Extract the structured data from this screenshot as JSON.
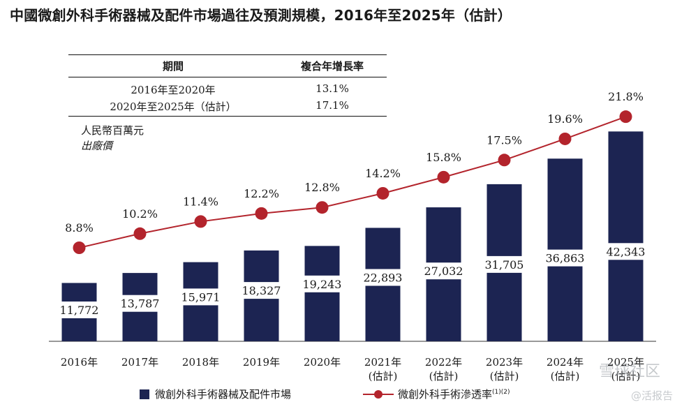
{
  "title": "中國微創外科手術器械及配件市場過往及預測規模，2016年至2025年（估計）",
  "cagr_table": {
    "headers": [
      "期間",
      "複合年增長率"
    ],
    "rows": [
      {
        "period": "2016年至2020年",
        "rate": "13.1%"
      },
      {
        "period": "2020年至2025年（估計）",
        "rate": "17.1%"
      }
    ]
  },
  "unit_label": "人民幣百萬元",
  "unit_sublabel": "出廠價",
  "legend": {
    "bar_label": "微創外科手術器械及配件市場",
    "line_label": "微創外科手術滲透率",
    "line_note": "(1)(2)"
  },
  "watermarks": [
    "雪球社区",
    "@活报告"
  ],
  "chart_data": {
    "type": "bar",
    "categories": [
      "2016年",
      "2017年",
      "2018年",
      "2019年",
      "2020年",
      "2021年\n(估計)",
      "2022年\n(估計)",
      "2023年\n(估計)",
      "2024年\n(估計)",
      "2025年\n(估計)"
    ],
    "series": [
      {
        "name": "微創外科手術器械及配件市場",
        "type": "bar",
        "values": [
          11772,
          13787,
          15971,
          18327,
          19243,
          22893,
          27032,
          31705,
          36863,
          42343
        ],
        "labels": [
          "11,772",
          "13,787",
          "15,971",
          "18,327",
          "19,243",
          "22,893",
          "27,032",
          "31,705",
          "36,863",
          "42,343"
        ]
      },
      {
        "name": "微創外科手術滲透率",
        "type": "line",
        "values": [
          8.8,
          10.2,
          11.4,
          12.2,
          12.8,
          14.2,
          15.8,
          17.5,
          19.6,
          21.8
        ],
        "labels": [
          "8.8%",
          "10.2%",
          "11.4%",
          "12.2%",
          "12.8%",
          "14.2%",
          "15.8%",
          "17.5%",
          "19.6%",
          "21.8%"
        ]
      }
    ],
    "colors": {
      "bar": "#1c2452",
      "line": "#b3242c",
      "axis": "#333333"
    },
    "grid": false
  }
}
